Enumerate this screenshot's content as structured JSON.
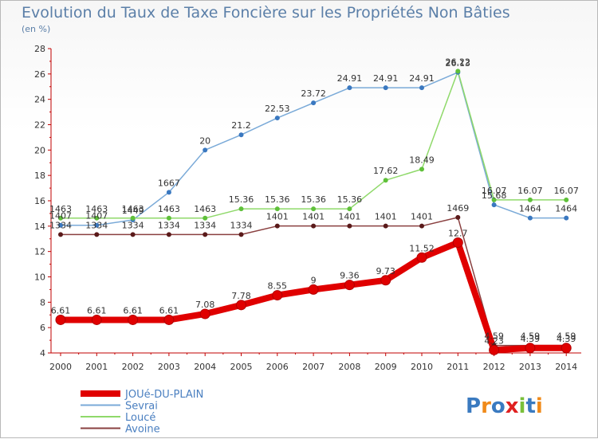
{
  "title": "Evolution du Taux de Taxe Foncière sur les Propriétés Non Bâties",
  "subtitle": "(en %)",
  "logo": "Proxiti",
  "colors": {
    "axis": "#c00000",
    "grid": "#dddddd",
    "text": "#333333",
    "title": "#5b7fa8",
    "legend_text": "#4a7fc0"
  },
  "chart_data": {
    "type": "line",
    "title": "Evolution du Taux de Taxe Foncière sur les Propriétés Non Bâties",
    "ylabel": "(en %)",
    "xlabel": "",
    "x": [
      "2000",
      "2001",
      "2002",
      "2003",
      "2004",
      "2005",
      "2006",
      "2007",
      "2008",
      "2009",
      "2010",
      "2011",
      "2012",
      "2013",
      "2014"
    ],
    "ylim": [
      4,
      28
    ],
    "yticks": [
      4,
      6,
      8,
      10,
      12,
      14,
      16,
      18,
      20,
      22,
      24,
      26,
      28
    ],
    "grid": false,
    "legend_position": "bottom-left",
    "series": [
      {
        "name": "JOUé-DU-PLAIN",
        "color": "#e00000",
        "marker": "#e00000",
        "width": 8,
        "labelled": true,
        "values": [
          6.61,
          6.61,
          6.61,
          6.61,
          7.08,
          7.78,
          8.55,
          9,
          9.36,
          9.73,
          11.52,
          12.7,
          4.23,
          4.39,
          4.39
        ]
      },
      {
        "name": "Sevrai",
        "color": "#7aaad8",
        "marker": "#3a78c0",
        "width": 1.5,
        "labelled": true,
        "values": [
          14.07,
          14.07,
          14.49,
          16.67,
          20,
          21.2,
          22.53,
          23.72,
          24.91,
          24.91,
          24.91,
          26.13,
          15.68,
          14.64,
          14.64
        ]
      },
      {
        "name": "Loucé",
        "color": "#8fd96a",
        "marker": "#5fc03a",
        "width": 1.5,
        "labelled": true,
        "values": [
          14.63,
          14.63,
          14.63,
          14.63,
          14.63,
          15.36,
          15.36,
          15.36,
          15.36,
          17.62,
          18.49,
          26.22,
          16.07,
          16.07,
          16.07
        ]
      },
      {
        "name": "Avoine",
        "color": "#8a4040",
        "marker": "#5a1a1a",
        "width": 1.5,
        "labelled": true,
        "values": [
          13.34,
          13.34,
          13.34,
          13.34,
          13.34,
          13.34,
          14.01,
          14.01,
          14.01,
          14.01,
          14.01,
          14.69,
          4.59,
          4.59,
          4.59
        ]
      }
    ],
    "data_labels": [
      [
        "6.61",
        "6.61",
        "6.61",
        "6.61",
        "7.08",
        "7.78",
        "8.55",
        "9",
        "9.36",
        "9.73",
        "11.52",
        "12.7",
        "4.23",
        "4.39",
        "4.39"
      ],
      [
        "1407",
        "1407",
        "1449",
        "1667",
        "20",
        "21.2",
        "22.53",
        "23.72",
        "24.91",
        "24.91",
        "24.91",
        "26.13",
        "15.68",
        "1464",
        "1464"
      ],
      [
        "1463",
        "1463",
        "1463",
        "1463",
        "1463",
        "15.36",
        "15.36",
        "15.36",
        "15.36",
        "17.62",
        "18.49",
        "26.22",
        "16.07",
        "16.07",
        "16.07"
      ],
      [
        "1334",
        "1334",
        "1334",
        "1334",
        "1334",
        "1334",
        "1401",
        "1401",
        "1401",
        "1401",
        "1401",
        "1469",
        "4.59",
        "4.59",
        "4.59"
      ]
    ]
  }
}
